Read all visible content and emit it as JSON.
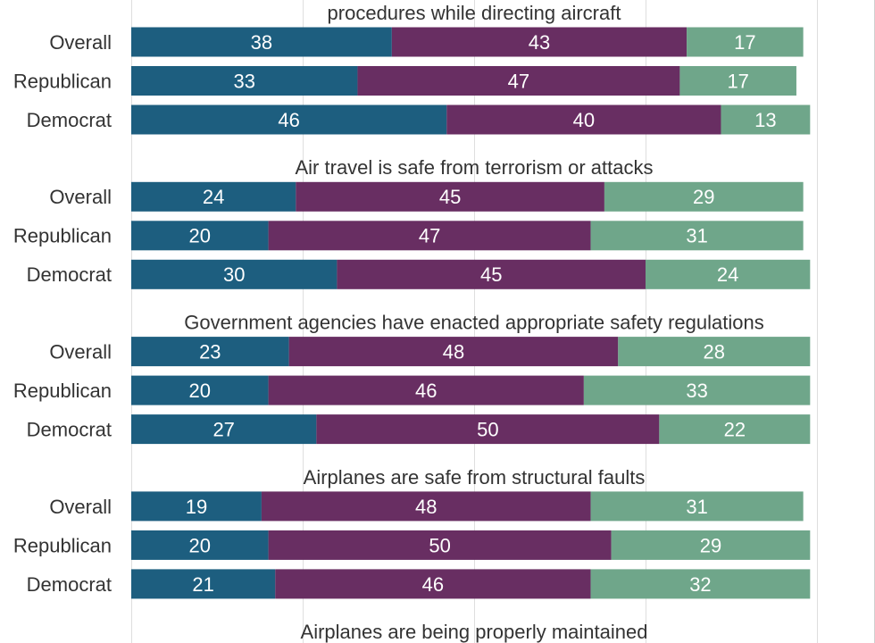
{
  "chart_data": {
    "type": "bar",
    "orientation": "horizontal",
    "stacked": true,
    "xlim": [
      0,
      100
    ],
    "grid": true,
    "grid_step": 25,
    "series_colors": [
      "#1d5e7f",
      "#682e62",
      "#6fa68a"
    ],
    "panels": [
      {
        "title": "procedures while directing aircraft",
        "categories": [
          "Overall",
          "Republican",
          "Democrat"
        ],
        "values": [
          [
            38,
            43,
            17
          ],
          [
            33,
            47,
            17
          ],
          [
            46,
            40,
            13
          ]
        ]
      },
      {
        "title": "Air travel is safe from terrorism or attacks",
        "categories": [
          "Overall",
          "Republican",
          "Democrat"
        ],
        "values": [
          [
            24,
            45,
            29
          ],
          [
            20,
            47,
            31
          ],
          [
            30,
            45,
            24
          ]
        ]
      },
      {
        "title": "Government agencies have enacted appropriate safety regulations",
        "categories": [
          "Overall",
          "Republican",
          "Democrat"
        ],
        "values": [
          [
            23,
            48,
            28
          ],
          [
            20,
            46,
            33
          ],
          [
            27,
            50,
            22
          ]
        ]
      },
      {
        "title": "Airplanes are safe from structural faults",
        "categories": [
          "Overall",
          "Republican",
          "Democrat"
        ],
        "values": [
          [
            19,
            48,
            31
          ],
          [
            20,
            50,
            29
          ],
          [
            21,
            46,
            32
          ]
        ]
      },
      {
        "title": "Airplanes are being properly maintained",
        "categories": [],
        "values": []
      }
    ]
  },
  "colors": {
    "text": "#333333",
    "value_text": "#ffffff",
    "grid": "#dedede",
    "frame": "#d0d0d0"
  }
}
